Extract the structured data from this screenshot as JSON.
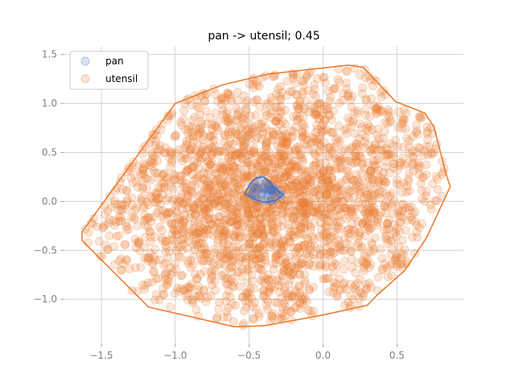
{
  "chart_data": {
    "type": "scatter",
    "title": "pan -> utensil; 0.45",
    "xlabel": "",
    "ylabel": "",
    "xlim": [
      -1.75,
      0.95
    ],
    "ylim": [
      -1.45,
      1.58
    ],
    "grid": true,
    "legend": {
      "position": "top-left"
    },
    "x_ticks": [
      {
        "value": -1.5,
        "label": "−1.5"
      },
      {
        "value": -1.0,
        "label": "−1.0"
      },
      {
        "value": -0.5,
        "label": "−0.5"
      },
      {
        "value": 0.0,
        "label": "0.0"
      },
      {
        "value": 0.5,
        "label": "0.5"
      }
    ],
    "y_ticks": [
      {
        "value": -1.0,
        "label": "−1.0"
      },
      {
        "value": -0.5,
        "label": "−0.5"
      },
      {
        "value": 0.0,
        "label": "0.0"
      },
      {
        "value": 0.5,
        "label": "0.5"
      },
      {
        "value": 1.0,
        "label": "1.0"
      },
      {
        "value": 1.5,
        "label": "1.5"
      }
    ],
    "series": [
      {
        "name": "pan",
        "color": "#4472c4",
        "hull": [
          [
            -0.53,
            0.08
          ],
          [
            -0.49,
            0.19
          ],
          [
            -0.45,
            0.24
          ],
          [
            -0.4,
            0.25
          ],
          [
            -0.3,
            0.1
          ],
          [
            -0.27,
            0.07
          ],
          [
            -0.32,
            0.01
          ],
          [
            -0.4,
            -0.01
          ],
          [
            -0.46,
            0.02
          ]
        ]
      },
      {
        "name": "utensil",
        "color": "#ed7d31",
        "hull": [
          [
            -1.63,
            -0.31
          ],
          [
            -1.0,
            1.0
          ],
          [
            -0.68,
            1.19
          ],
          [
            -0.37,
            1.3
          ],
          [
            0.17,
            1.39
          ],
          [
            0.27,
            1.37
          ],
          [
            0.49,
            1.02
          ],
          [
            0.69,
            0.9
          ],
          [
            0.75,
            0.76
          ],
          [
            0.83,
            0.29
          ],
          [
            0.86,
            0.15
          ],
          [
            0.7,
            -0.37
          ],
          [
            0.55,
            -0.71
          ],
          [
            0.37,
            -0.95
          ],
          [
            0.3,
            -1.06
          ],
          [
            0.0,
            -1.16
          ],
          [
            -0.4,
            -1.27
          ],
          [
            -0.6,
            -1.28
          ],
          [
            -1.18,
            -1.08
          ],
          [
            -1.63,
            -0.4
          ]
        ]
      }
    ]
  }
}
